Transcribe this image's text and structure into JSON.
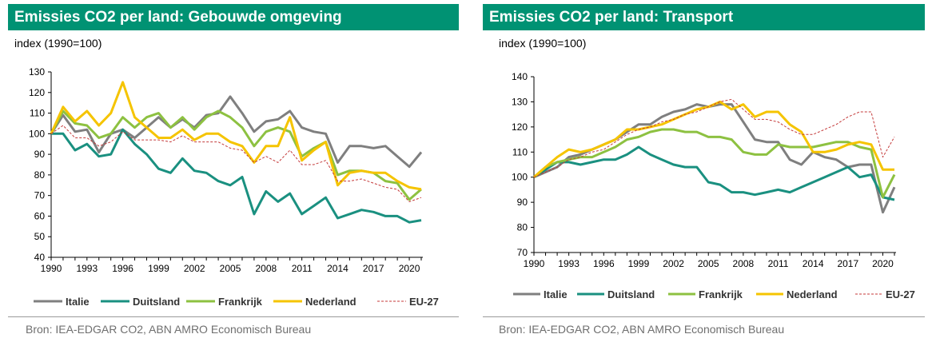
{
  "colors": {
    "title_bar": "#009273",
    "Italie": "#7f7f7f",
    "Duitsland": "#1a9080",
    "Frankrijk": "#8dc141",
    "Nederland": "#f5c400",
    "EU-27": "#c43a3a"
  },
  "chart_data": [
    {
      "type": "line",
      "title": "Emissies CO2 per land: Gebouwde omgeving",
      "ylabel": "index (1990=100)",
      "source": "Bron: IEA-EDGAR CO2, ABN AMRO Economisch Bureau",
      "ylim": [
        40,
        130
      ],
      "yticks": [
        40,
        50,
        60,
        70,
        80,
        90,
        100,
        110,
        120,
        130
      ],
      "xlim": [
        1990,
        2021
      ],
      "xticks": [
        1990,
        1993,
        1996,
        1999,
        2002,
        2005,
        2008,
        2011,
        2014,
        2017,
        2020
      ],
      "grid": false,
      "legend_position": "bottom",
      "x": [
        1990,
        1991,
        1992,
        1993,
        1994,
        1995,
        1996,
        1997,
        1998,
        1999,
        2000,
        2001,
        2002,
        2003,
        2004,
        2005,
        2006,
        2007,
        2008,
        2009,
        2010,
        2011,
        2012,
        2013,
        2014,
        2015,
        2016,
        2017,
        2018,
        2019,
        2020,
        2021
      ],
      "series": [
        {
          "name": "Italie",
          "style": "solid",
          "values": [
            100,
            109,
            101,
            102,
            91,
            100,
            102,
            98,
            103,
            108,
            103,
            107,
            103,
            109,
            110,
            118,
            110,
            101,
            106,
            107,
            111,
            103,
            101,
            100,
            86,
            94,
            94,
            93,
            94,
            89,
            84,
            91
          ]
        },
        {
          "name": "Duitsland",
          "style": "solid",
          "values": [
            100,
            100,
            92,
            95,
            89,
            90,
            102,
            95,
            90,
            83,
            81,
            88,
            82,
            81,
            77,
            75,
            79,
            61,
            72,
            67,
            71,
            61,
            65,
            69,
            59,
            61,
            63,
            62,
            60,
            60,
            57,
            58
          ]
        },
        {
          "name": "Frankrijk",
          "style": "solid",
          "values": [
            100,
            111,
            105,
            104,
            98,
            100,
            108,
            103,
            108,
            110,
            103,
            108,
            102,
            108,
            111,
            108,
            103,
            94,
            101,
            103,
            101,
            89,
            93,
            96,
            80,
            82,
            82,
            81,
            77,
            76,
            68,
            73
          ]
        },
        {
          "name": "Nederland",
          "style": "solid",
          "values": [
            100,
            113,
            106,
            111,
            104,
            110,
            125,
            108,
            103,
            98,
            98,
            102,
            97,
            100,
            100,
            96,
            94,
            86,
            94,
            94,
            108,
            87,
            92,
            96,
            75,
            81,
            82,
            81,
            81,
            77,
            74,
            73
          ]
        },
        {
          "name": "EU-27",
          "style": "dashed",
          "values": [
            100,
            104,
            98,
            98,
            94,
            96,
            101,
            97,
            97,
            97,
            96,
            99,
            96,
            96,
            96,
            93,
            92,
            86,
            89,
            86,
            92,
            85,
            85,
            87,
            77,
            77,
            78,
            76,
            74,
            73,
            67,
            69
          ]
        }
      ]
    },
    {
      "type": "line",
      "title": "Emissies CO2 per land: Transport",
      "ylabel": "index (1990=100)",
      "source": "Bron: IEA-EDGAR CO2, ABN AMRO Economisch Bureau",
      "ylim": [
        70,
        140
      ],
      "yticks": [
        70,
        80,
        90,
        100,
        110,
        120,
        130,
        140
      ],
      "xlim": [
        1990,
        2021
      ],
      "xticks": [
        1990,
        1993,
        1996,
        1999,
        2002,
        2005,
        2008,
        2011,
        2014,
        2017,
        2020
      ],
      "grid": false,
      "legend_position": "bottom",
      "x": [
        1990,
        1991,
        1992,
        1993,
        1994,
        1995,
        1996,
        1997,
        1998,
        1999,
        2000,
        2001,
        2002,
        2003,
        2004,
        2005,
        2006,
        2007,
        2008,
        2009,
        2010,
        2011,
        2012,
        2013,
        2014,
        2015,
        2016,
        2017,
        2018,
        2019,
        2020,
        2021
      ],
      "series": [
        {
          "name": "Italie",
          "style": "solid",
          "values": [
            100,
            102,
            104,
            108,
            109,
            111,
            113,
            115,
            118,
            121,
            121,
            124,
            126,
            127,
            129,
            128,
            129,
            129,
            122,
            115,
            114,
            114,
            107,
            105,
            110,
            108,
            107,
            104,
            105,
            105,
            86,
            96
          ]
        },
        {
          "name": "Duitsland",
          "style": "solid",
          "values": [
            100,
            103,
            106,
            106,
            105,
            106,
            107,
            107,
            109,
            112,
            109,
            107,
            105,
            104,
            104,
            98,
            97,
            94,
            94,
            93,
            94,
            95,
            94,
            96,
            98,
            100,
            102,
            104,
            100,
            101,
            92,
            91
          ]
        },
        {
          "name": "Frankrijk",
          "style": "solid",
          "values": [
            100,
            104,
            106,
            107,
            108,
            108,
            110,
            112,
            115,
            116,
            118,
            119,
            119,
            118,
            118,
            116,
            116,
            115,
            110,
            109,
            109,
            113,
            112,
            112,
            112,
            113,
            114,
            114,
            112,
            111,
            92,
            101
          ]
        },
        {
          "name": "Nederland",
          "style": "solid",
          "values": [
            100,
            104,
            108,
            111,
            110,
            111,
            113,
            115,
            119,
            119,
            120,
            121,
            123,
            125,
            127,
            128,
            130,
            127,
            129,
            124,
            126,
            126,
            121,
            118,
            110,
            110,
            111,
            113,
            114,
            113,
            103,
            103
          ]
        },
        {
          "name": "EU-27",
          "style": "dashed",
          "values": [
            100,
            102,
            104,
            107,
            108,
            110,
            111,
            114,
            117,
            119,
            120,
            122,
            123,
            125,
            126,
            128,
            130,
            131,
            127,
            123,
            123,
            122,
            119,
            117,
            117,
            119,
            121,
            124,
            126,
            126,
            108,
            116
          ]
        }
      ]
    }
  ]
}
